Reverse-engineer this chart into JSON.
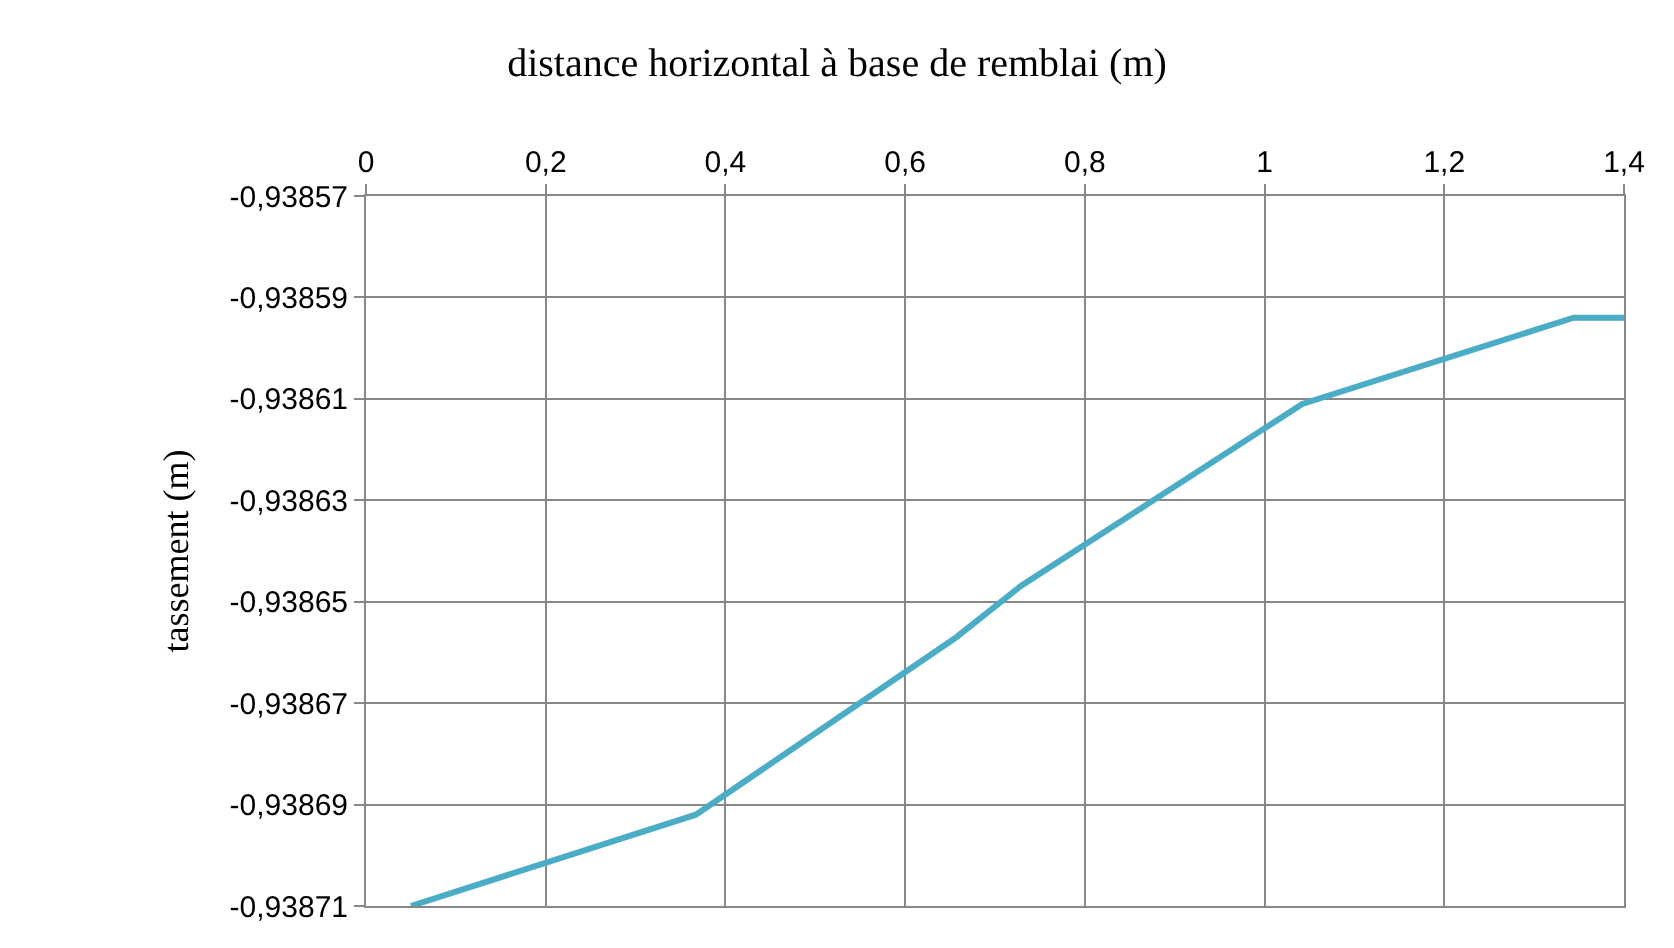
{
  "chart_data": {
    "type": "line",
    "title": "distance horizontal à base de remblai (m)",
    "ylabel": "tassement (m)",
    "x": [
      0.05,
      0.367,
      0.657,
      0.728,
      1.042,
      1.344,
      1.4
    ],
    "series": [
      {
        "color": "#4bacc6",
        "values": [
          -0.93871,
          -0.938692,
          -0.938657,
          -0.938647,
          -0.938611,
          -0.938594,
          -0.938594
        ]
      }
    ],
    "xlim": [
      0,
      1.4
    ],
    "xticks": [
      0,
      {
        "value": 0.2,
        "label": "0,2"
      },
      {
        "value": 0.4,
        "label": "0,4"
      },
      {
        "value": 0.6,
        "label": "0,6"
      },
      {
        "value": 0.8,
        "label": "0,8"
      },
      1,
      {
        "value": 1.2,
        "label": "1,2"
      },
      {
        "value": 1.4,
        "label": "1,4"
      }
    ],
    "ylim": [
      -0.93871,
      -0.93857
    ],
    "yticks": [
      {
        "value": -0.93857,
        "label": "-0,93857"
      },
      {
        "value": -0.93859,
        "label": "-0,93859"
      },
      {
        "value": -0.93861,
        "label": "-0,93861"
      },
      {
        "value": -0.93863,
        "label": "-0,93863"
      },
      {
        "value": -0.93865,
        "label": "-0,93865"
      },
      {
        "value": -0.93867,
        "label": "-0,93867"
      },
      {
        "value": -0.93869,
        "label": "-0,93869"
      },
      {
        "value": -0.93871,
        "label": "-0,93871"
      }
    ],
    "grid": true,
    "marker": "none",
    "line_style": "solid"
  }
}
